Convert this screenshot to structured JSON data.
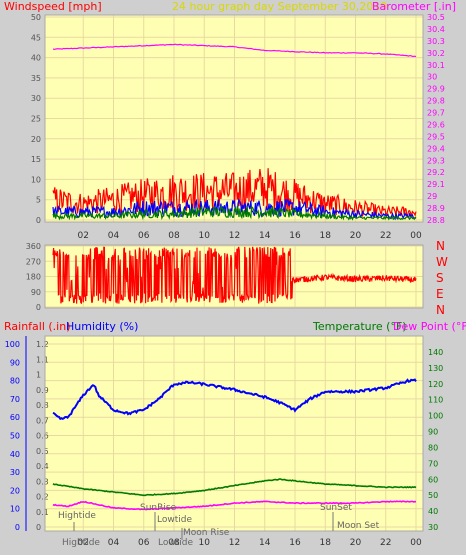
{
  "header": {
    "left_label": "Windspeed [mph]",
    "title": "24 hour graph day  September 30,2019",
    "right_label": "Barometer [.in]"
  },
  "colors": {
    "background": "#cfcfcf",
    "plot_bg": "#ffffb4",
    "grid": "#e8d9a0",
    "red": "#ff0000",
    "blue": "#0000ff",
    "green": "#007a00",
    "magenta": "#ff00ff",
    "title_yellow": "#d8d800",
    "axis_text": "#555555"
  },
  "x_axis": {
    "ticks": [
      "02",
      "04",
      "06",
      "08",
      "10",
      "12",
      "14",
      "16",
      "18",
      "20",
      "22",
      "00"
    ]
  },
  "direction_labels": [
    "N",
    "W",
    "S",
    "E",
    "N"
  ],
  "bottom_header": {
    "rainfall": "Rainfall (.in)",
    "humidity": "Humidity (%)",
    "temperature": "Temperature (°F)",
    "dewpoint": "Dew Point (°F)"
  },
  "annotations": {
    "hightide_1": "Hightide",
    "hightide_2": "Hightide",
    "sunrise": "SunRise",
    "lowtide_1": "Lowtide",
    "lowtide_2": "Lowtide",
    "moonrise": "Moon Rise",
    "sunset": "SunSet",
    "moonset": "Moon Set"
  },
  "chart_data": [
    {
      "type": "line",
      "panel": "wind_barometer",
      "title": "24 hour graph day  September 30,2019",
      "x_ticks": [
        "02",
        "04",
        "06",
        "08",
        "10",
        "12",
        "14",
        "16",
        "18",
        "20",
        "22",
        "00"
      ],
      "left_axis": {
        "label": "Windspeed [mph]",
        "ylim": [
          0,
          50
        ],
        "ticks": [
          0,
          5,
          10,
          15,
          20,
          25,
          30,
          35,
          40,
          45,
          50
        ]
      },
      "right_axis": {
        "label": "Barometer [.in]",
        "ylim": [
          28.8,
          30.5
        ],
        "ticks": [
          "28.8",
          "28.9",
          "29",
          "29.1",
          "29.2",
          "29.3",
          "29.4",
          "29.5",
          "29.6",
          "29.7",
          "29.8",
          "29.9",
          "30",
          "30.1",
          "30.2",
          "30.3",
          "30.4",
          "30.5"
        ]
      },
      "series": [
        {
          "name": "Barometer [.in]",
          "color": "#ff00ff",
          "axis": "right",
          "x": [
            0,
            2,
            4,
            6,
            8,
            10,
            12,
            14,
            16,
            18,
            20,
            22,
            24
          ],
          "y": [
            30.23,
            30.24,
            30.25,
            30.26,
            30.27,
            30.26,
            30.25,
            30.22,
            30.21,
            30.2,
            30.2,
            30.19,
            30.17
          ]
        },
        {
          "color": "#ff0000",
          "axis": "left",
          "x": [
            0,
            2,
            4,
            6,
            8,
            10,
            12,
            14,
            16,
            18,
            20,
            22,
            24
          ],
          "y": [
            5,
            4,
            5,
            6,
            7,
            7,
            7,
            8,
            6,
            4,
            3,
            2,
            2
          ]
        },
        {
          "color": "#0000ff",
          "axis": "left",
          "x": [
            0,
            2,
            4,
            6,
            8,
            10,
            12,
            14,
            16,
            18,
            20,
            22,
            24
          ],
          "y": [
            2,
            2,
            2,
            3,
            3,
            3,
            3,
            3,
            3,
            2,
            1.5,
            1,
            1
          ]
        },
        {
          "color": "#007a00",
          "axis": "left",
          "x": [
            0,
            2,
            4,
            6,
            8,
            10,
            12,
            14,
            16,
            18,
            20,
            22,
            24
          ],
          "y": [
            1,
            1,
            1,
            1.5,
            1.5,
            2,
            2,
            2,
            1.5,
            1,
            0.5,
            0.5,
            0.5
          ]
        }
      ]
    },
    {
      "type": "line",
      "panel": "wind_direction",
      "left_axis": {
        "ylim": [
          0,
          360
        ],
        "ticks": [
          0,
          90,
          180,
          270,
          360
        ]
      },
      "right_labels": [
        "N",
        "W",
        "S",
        "E",
        "N"
      ],
      "series": [
        {
          "color": "#ff0000",
          "x": [
            0,
            15.8,
            16,
            18,
            20,
            22,
            24
          ],
          "y_range_before": [
            20,
            350
          ],
          "y": [
            180,
            180,
            160,
            175,
            165,
            170,
            160
          ]
        }
      ]
    },
    {
      "type": "line",
      "panel": "humidity_temperature",
      "axes": {
        "rainfall": {
          "label": "Rainfall (.in)",
          "ylim": [
            0,
            1.2
          ],
          "ticks": [
            "0",
            "0.1",
            "0.2",
            "0.3",
            "0.4",
            "0.5",
            "0.6",
            "0.7",
            "0.8",
            "0.9",
            "1",
            "1.1",
            "1.2"
          ]
        },
        "humidity": {
          "label": "Humidity (%)",
          "ylim": [
            0,
            100
          ],
          "ticks": [
            0,
            10,
            20,
            30,
            40,
            50,
            60,
            70,
            80,
            90,
            100
          ]
        },
        "temperature": {
          "label": "Temperature (°F)",
          "ylim": [
            30,
            145
          ],
          "ticks": [
            30,
            40,
            50,
            60,
            70,
            80,
            90,
            100,
            110,
            120,
            130,
            140
          ]
        }
      },
      "series": [
        {
          "name": "Humidity (%)",
          "color": "#0000ff",
          "axis": "humidity",
          "x": [
            0,
            0.5,
            1,
            2,
            2.7,
            3,
            4,
            5,
            6,
            7,
            8,
            9,
            10,
            12,
            14,
            15,
            16,
            17,
            18,
            20,
            22,
            23.5,
            24
          ],
          "y": [
            62,
            59,
            60,
            72,
            78,
            72,
            64,
            62,
            64,
            70,
            78,
            79,
            78,
            75,
            71,
            68,
            64,
            70,
            74,
            74,
            76,
            80,
            80
          ]
        },
        {
          "name": "Temperature (°F)",
          "color": "#007a00",
          "axis": "temperature",
          "x": [
            0,
            2,
            4,
            6,
            8,
            10,
            12,
            14,
            15,
            16,
            18,
            20,
            22,
            24
          ],
          "y": [
            57,
            54,
            52,
            50,
            51,
            53,
            56,
            59,
            60,
            59,
            57,
            56,
            55,
            55
          ]
        },
        {
          "name": "Dew Point (°F)",
          "color": "#ff00ff",
          "axis": "temperature",
          "x": [
            0,
            1,
            2,
            3,
            4,
            6,
            8,
            10,
            12,
            14,
            16,
            18,
            20,
            22,
            24
          ],
          "y": [
            44,
            43,
            46,
            44,
            42,
            41,
            42,
            43,
            45,
            46,
            45,
            45,
            45,
            46,
            46
          ]
        }
      ]
    }
  ]
}
